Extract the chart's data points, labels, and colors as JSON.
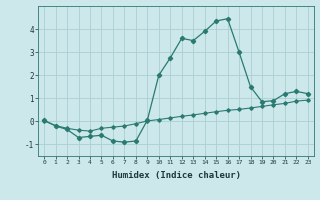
{
  "xlabel": "Humidex (Indice chaleur)",
  "bg_color": "#cce8ea",
  "grid_color": "#aacfd2",
  "line_color": "#2a7a72",
  "xlim": [
    -0.5,
    23.5
  ],
  "ylim": [
    -1.5,
    5.0
  ],
  "yticks": [
    -1,
    0,
    1,
    2,
    3,
    4
  ],
  "xticks": [
    0,
    1,
    2,
    3,
    4,
    5,
    6,
    7,
    8,
    9,
    10,
    11,
    12,
    13,
    14,
    15,
    16,
    17,
    18,
    19,
    20,
    21,
    22,
    23
  ],
  "line1_x": [
    0,
    1,
    2,
    3,
    4,
    5,
    6,
    7,
    8,
    9,
    10,
    11,
    12,
    13,
    14,
    15,
    16,
    17,
    18,
    19,
    20,
    21,
    22,
    23
  ],
  "line1_y": [
    0.05,
    -0.2,
    -0.35,
    -0.7,
    -0.65,
    -0.6,
    -0.85,
    -0.9,
    -0.85,
    0.05,
    2.0,
    2.75,
    3.6,
    3.5,
    3.9,
    4.35,
    4.45,
    3.0,
    1.5,
    0.85,
    0.9,
    1.2,
    1.3,
    1.2
  ],
  "line2_x": [
    0,
    1,
    2,
    3,
    4,
    5,
    6,
    7,
    8,
    9,
    10,
    11,
    12,
    13,
    14,
    15,
    16,
    17,
    18,
    19,
    20,
    21,
    22,
    23
  ],
  "line2_y": [
    0.02,
    -0.18,
    -0.3,
    -0.38,
    -0.42,
    -0.3,
    -0.25,
    -0.2,
    -0.1,
    0.02,
    0.08,
    0.15,
    0.22,
    0.28,
    0.35,
    0.42,
    0.48,
    0.52,
    0.58,
    0.65,
    0.72,
    0.78,
    0.88,
    0.92
  ]
}
